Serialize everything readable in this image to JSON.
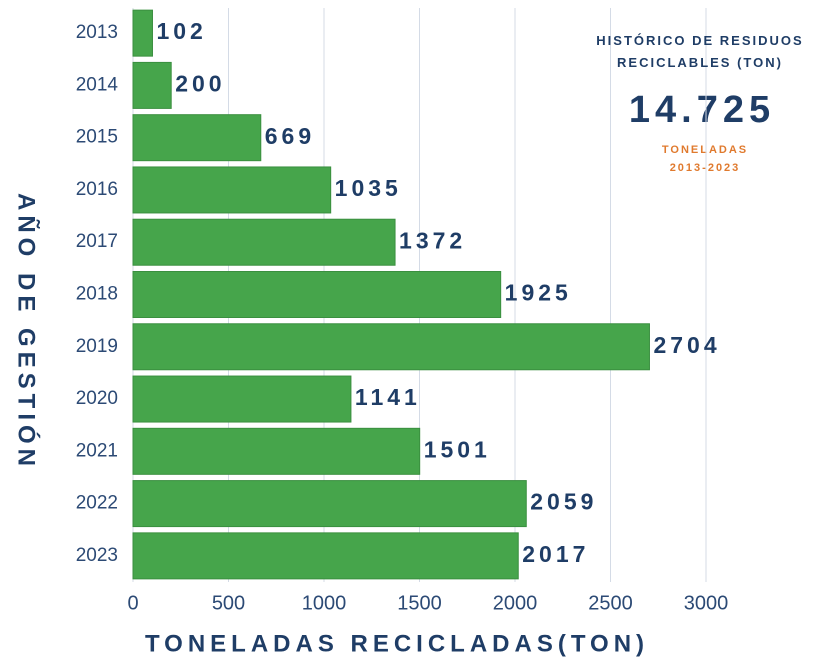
{
  "chart_data": {
    "type": "bar",
    "orientation": "horizontal",
    "title": "HISTÓRICO DE RESIDUOS RECICLABLES (TON)",
    "annotations": [
      "14.725",
      "TONELADAS",
      "2013-2023"
    ],
    "x_label": "TONELADAS RECICLADAS(TON)",
    "y_label": "AÑO DE GESTIÓN",
    "categories": [
      "2013",
      "2014",
      "2015",
      "2016",
      "2017",
      "2018",
      "2019",
      "2020",
      "2021",
      "2022",
      "2023"
    ],
    "values": [
      102,
      200,
      669,
      1035,
      1372,
      1925,
      2704,
      1141,
      1501,
      2059,
      2017
    ],
    "color": "#46a54b",
    "xlim": [
      0,
      3000
    ],
    "xticks": [
      0,
      500,
      1000,
      1500,
      2000,
      2500,
      3000
    ],
    "grid": true
  }
}
